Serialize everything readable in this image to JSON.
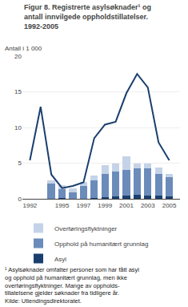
{
  "chart_data": {
    "type": "bar",
    "title": "Figur 8. Registrerte asylsøknader¹ og\nantall innvilgede oppholdstillatelser.\n1992-2005",
    "ylabel": "Antall i 1 000",
    "stacked": true,
    "grid": "y",
    "legend": "bottom",
    "xlim": [
      1991.3,
      2006
    ],
    "xticks": [
      1992,
      1995,
      1997,
      1999,
      2001,
      2003,
      2005
    ],
    "ylim": [
      0,
      20
    ],
    "yticks": [
      0,
      5,
      10,
      15,
      20
    ],
    "series": [
      {
        "name": "Asyl",
        "color": "#1a3f6f",
        "x": [
          1994,
          1995,
          1996,
          1997,
          1998,
          1999,
          2000,
          2001,
          2002,
          2003,
          2004,
          2005
        ],
        "values": [
          0.05,
          0.1,
          0.05,
          0.05,
          0.1,
          0.2,
          0.3,
          0.5,
          0.6,
          0.5,
          0.5,
          0.3
        ]
      },
      {
        "name": "Opphold på humanitært grunnlag",
        "color": "#6b8cba",
        "x": [
          1994,
          1995,
          1996,
          1997,
          1998,
          1999,
          2000,
          2001,
          2002,
          2003,
          2004,
          2005
        ],
        "values": [
          2.1,
          1.3,
          0.9,
          1.8,
          2.5,
          3.3,
          3.5,
          3.5,
          3.7,
          3.8,
          3.0,
          2.7
        ]
      },
      {
        "name": "Overføringsflyktninger",
        "color": "#c5d3e8",
        "x": [
          1994,
          1995,
          1996,
          1997,
          1998,
          1999,
          2000,
          2001,
          2002,
          2003,
          2004,
          2005
        ],
        "values": [
          0.4,
          0.5,
          0.5,
          0.55,
          0.7,
          1.2,
          1.1,
          1.9,
          0.7,
          0.7,
          0.85,
          0.5
        ]
      },
      {
        "type": "line",
        "color": "#1a3f6f",
        "x": [
          1992,
          1993,
          1994,
          1995,
          1996,
          1997,
          1998,
          1999,
          2000,
          2001,
          2002,
          2003,
          2004,
          2005
        ],
        "values": [
          5.4,
          12.9,
          3.4,
          1.5,
          1.8,
          2.3,
          8.5,
          10.4,
          10.8,
          14.8,
          17.5,
          15.6,
          7.9,
          5.4
        ]
      }
    ],
    "footnote": "¹ Asylsøknader omfatter personer som har fått asyl\nog opphold på humanitært grunnlag, men ikke\noverføringsflyktninger. Mange av oppholds-\ntillatelsene gjelder søknader fra tidligere år.\nKilde: Utlendingsdirektoratet."
  }
}
